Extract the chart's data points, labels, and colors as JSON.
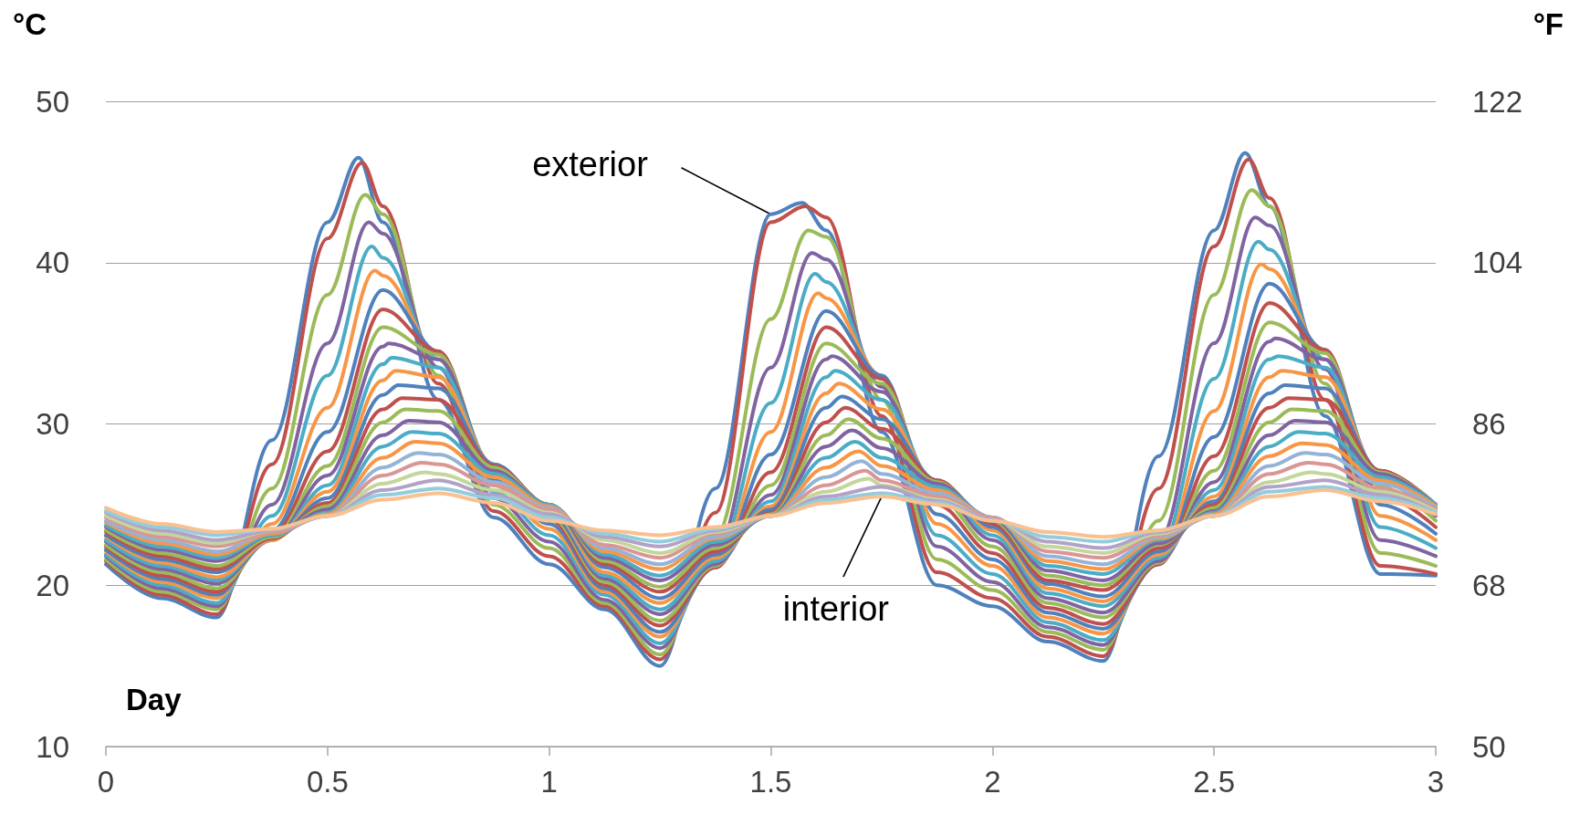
{
  "chart_data": {
    "type": "line",
    "xlabel": "Day",
    "ylabel": "°C",
    "y2label": "°F",
    "xlim": [
      0,
      3
    ],
    "xticks": [
      0,
      0.5,
      1,
      1.5,
      2,
      2.5,
      3
    ],
    "ylim": [
      10,
      50
    ],
    "yticks": [
      10,
      20,
      30,
      40,
      50
    ],
    "y2lim": [
      50,
      122
    ],
    "y2ticks": [
      50,
      68,
      86,
      104,
      122
    ],
    "grid": "y",
    "marker": "none",
    "line_style": "solid",
    "annotations": [
      {
        "text": "exterior",
        "x": 1.5,
        "y": 43.0
      },
      {
        "text": "interior",
        "x": 1.75,
        "y": 25.5
      }
    ],
    "series": [
      {
        "color": "#4f81bd",
        "x": [
          0,
          0.125,
          0.25,
          0.375,
          0.5,
          0.57,
          0.625,
          0.75,
          0.875,
          1,
          1.125,
          1.25,
          1.375,
          1.5,
          1.57,
          1.625,
          1.75,
          1.875,
          2,
          2.125,
          2.25,
          2.375,
          2.5,
          2.57,
          2.625,
          2.75,
          2.875,
          3
        ],
        "values": [
          21.3,
          19.2,
          18.0,
          29,
          42.5,
          46.5,
          42.5,
          31.5,
          24.2,
          21.3,
          18.5,
          15.0,
          26,
          43.0,
          43.7,
          42.0,
          29.5,
          20,
          18.7,
          16.5,
          15.3,
          28,
          42,
          46.8,
          43.5,
          30.5,
          20.7,
          20.6
        ]
      },
      {
        "color": "#c0504d",
        "x": [
          0,
          0.125,
          0.25,
          0.375,
          0.5,
          0.578,
          0.625,
          0.75,
          0.875,
          1,
          1.125,
          1.25,
          1.375,
          1.5,
          1.578,
          1.625,
          1.75,
          1.875,
          2,
          2.125,
          2.25,
          2.375,
          2.5,
          2.578,
          2.625,
          2.75,
          2.875,
          3
        ],
        "values": [
          21.5,
          19.4,
          18.2,
          27.5,
          41.5,
          46.2,
          43.5,
          32.5,
          24.6,
          21.8,
          18.7,
          15.4,
          24.5,
          42.5,
          43.5,
          42.8,
          30.5,
          20.8,
          19.2,
          16.8,
          15.6,
          26,
          41,
          46.4,
          44.0,
          31.5,
          21.2,
          20.7
        ]
      },
      {
        "color": "#9bbb59",
        "x": [
          0,
          0.125,
          0.25,
          0.375,
          0.5,
          0.585,
          0.625,
          0.75,
          0.875,
          1,
          1.125,
          1.25,
          1.375,
          1.5,
          1.585,
          1.625,
          1.75,
          1.875,
          2,
          2.125,
          2.25,
          2.375,
          2.5,
          2.585,
          2.625,
          2.75,
          2.875,
          3
        ],
        "values": [
          21.6,
          19.6,
          18.5,
          26,
          38,
          44.2,
          43,
          33,
          25.0,
          22.3,
          18.9,
          15.7,
          23,
          36.5,
          42,
          41.6,
          31.5,
          21.6,
          19.7,
          17.1,
          16.0,
          24,
          38,
          44.5,
          43.5,
          32.5,
          22.0,
          21.2
        ]
      },
      {
        "color": "#8064a2",
        "x": [
          0,
          0.125,
          0.25,
          0.375,
          0.5,
          0.593,
          0.625,
          0.75,
          0.875,
          1,
          1.125,
          1.25,
          1.375,
          1.5,
          1.593,
          1.625,
          1.75,
          1.875,
          2,
          2.125,
          2.25,
          2.375,
          2.5,
          2.593,
          2.625,
          2.75,
          2.875,
          3
        ],
        "values": [
          21.8,
          19.8,
          18.7,
          25,
          35,
          42.5,
          41.8,
          33.5,
          25.4,
          22.7,
          19.1,
          16.1,
          22,
          33.5,
          40.6,
          40.2,
          32.3,
          22.4,
          20.2,
          17.4,
          16.3,
          22.7,
          35,
          42.8,
          42.3,
          33.4,
          22.8,
          21.8
        ]
      },
      {
        "color": "#4bacc6",
        "x": [
          0,
          0.125,
          0.25,
          0.375,
          0.5,
          0.6,
          0.625,
          0.75,
          0.875,
          1,
          1.125,
          1.25,
          1.375,
          1.5,
          1.6,
          1.625,
          1.75,
          1.875,
          2,
          2.125,
          2.25,
          2.375,
          2.5,
          2.6,
          2.625,
          2.75,
          2.875,
          3
        ],
        "values": [
          21.9,
          20.0,
          18.9,
          24.3,
          33,
          41,
          40.3,
          34,
          25.8,
          23.1,
          19.4,
          16.4,
          21.5,
          31.3,
          39.3,
          38.8,
          32.8,
          23.1,
          20.7,
          17.7,
          16.6,
          22,
          32.8,
          41.3,
          40.8,
          34,
          23.6,
          22.3
        ]
      },
      {
        "color": "#f79646",
        "x": [
          0,
          0.125,
          0.25,
          0.375,
          0.5,
          0.607,
          0.625,
          0.75,
          0.875,
          1,
          1.125,
          1.25,
          1.375,
          1.5,
          1.607,
          1.625,
          1.75,
          1.875,
          2,
          2.125,
          2.25,
          2.375,
          2.5,
          2.607,
          2.625,
          2.75,
          2.875,
          3
        ],
        "values": [
          22.1,
          20.2,
          19.2,
          23.8,
          31,
          39.5,
          39.2,
          34.3,
          26.2,
          23.5,
          19.6,
          16.8,
          21.2,
          29.5,
          38.1,
          37.8,
          33.0,
          23.8,
          21.2,
          18.0,
          17.0,
          21.5,
          30.8,
          39.9,
          39.6,
          34.4,
          24.3,
          22.8
        ]
      },
      {
        "color": "#4f81bd",
        "x": [
          0,
          0.125,
          0.25,
          0.375,
          0.5,
          0.625,
          0.75,
          0.875,
          1,
          1.125,
          1.25,
          1.375,
          1.5,
          1.625,
          1.75,
          1.875,
          2,
          2.125,
          2.25,
          2.375,
          2.5,
          2.625,
          2.75,
          2.875,
          3
        ],
        "values": [
          22.2,
          20.4,
          19.4,
          23.4,
          29.5,
          38.3,
          34.5,
          26.5,
          23.8,
          19.8,
          17.1,
          21.1,
          28.1,
          37.0,
          33.0,
          24.4,
          21.6,
          18.3,
          17.3,
          21.3,
          29.2,
          38.7,
          34.6,
          25.0,
          23.2
        ]
      },
      {
        "color": "#c0504d",
        "x": [
          0,
          0.125,
          0.25,
          0.375,
          0.5,
          0.625,
          0.75,
          0.875,
          1,
          1.125,
          1.25,
          1.375,
          1.5,
          1.625,
          1.75,
          1.875,
          2,
          2.125,
          2.25,
          2.375,
          2.5,
          2.625,
          2.75,
          2.875,
          3
        ],
        "values": [
          22.4,
          20.6,
          19.6,
          23.1,
          28.3,
          37.1,
          34.5,
          26.8,
          24.1,
          20.0,
          17.5,
          21.1,
          27,
          36.0,
          32.8,
          25.0,
          22.0,
          18.6,
          17.6,
          21.3,
          28,
          37.5,
          34.6,
          25.6,
          23.6
        ]
      },
      {
        "color": "#9bbb59",
        "x": [
          0,
          0.125,
          0.25,
          0.375,
          0.5,
          0.625,
          0.75,
          0.875,
          1,
          1.125,
          1.25,
          1.375,
          1.5,
          1.625,
          1.75,
          1.875,
          2,
          2.125,
          2.25,
          2.375,
          2.5,
          2.625,
          2.75,
          2.875,
          3
        ],
        "values": [
          22.5,
          20.8,
          19.8,
          22.9,
          27.4,
          36.0,
          34.3,
          27.1,
          24.3,
          20.2,
          17.8,
          21.2,
          26.2,
          35.0,
          32.5,
          25.5,
          22.4,
          18.9,
          18.0,
          21.4,
          27.1,
          36.3,
          34.4,
          26.1,
          24.0
        ]
      },
      {
        "color": "#8064a2",
        "x": [
          0,
          0.125,
          0.25,
          0.375,
          0.5,
          0.625,
          0.638,
          0.75,
          0.875,
          1,
          1.125,
          1.25,
          1.375,
          1.5,
          1.625,
          1.638,
          1.75,
          1.875,
          2,
          2.125,
          2.25,
          2.375,
          2.5,
          2.625,
          2.638,
          2.75,
          2.875,
          3
        ],
        "values": [
          22.7,
          21.0,
          20.1,
          22.8,
          26.8,
          34.8,
          35,
          34,
          27.3,
          24.5,
          20.4,
          18.2,
          21.3,
          25.6,
          34.0,
          34.2,
          32.0,
          25.9,
          22.8,
          19.2,
          18.3,
          21.5,
          26.4,
          35.1,
          35.3,
          34,
          26.5,
          24.3
        ]
      },
      {
        "color": "#4bacc6",
        "x": [
          0,
          0.125,
          0.25,
          0.375,
          0.5,
          0.625,
          0.645,
          0.75,
          0.875,
          1,
          1.125,
          1.25,
          1.375,
          1.5,
          1.625,
          1.645,
          1.75,
          1.875,
          2,
          2.125,
          2.25,
          2.375,
          2.5,
          2.625,
          2.645,
          2.75,
          2.875,
          3
        ],
        "values": [
          22.8,
          21.2,
          20.3,
          22.8,
          26.2,
          33.7,
          34.1,
          33.5,
          27.4,
          24.7,
          20.6,
          18.5,
          21.5,
          25.2,
          32.9,
          33.3,
          31.5,
          26.2,
          23.1,
          19.5,
          18.7,
          21.7,
          25.9,
          34.0,
          34.2,
          33.5,
          26.8,
          24.5
        ]
      },
      {
        "color": "#f79646",
        "x": [
          0,
          0.125,
          0.25,
          0.375,
          0.5,
          0.625,
          0.653,
          0.75,
          0.875,
          1,
          1.125,
          1.25,
          1.375,
          1.5,
          1.625,
          1.653,
          1.75,
          1.875,
          2,
          2.125,
          2.25,
          2.375,
          2.5,
          2.625,
          2.653,
          2.75,
          2.875,
          3
        ],
        "values": [
          23.0,
          21.4,
          20.5,
          22.8,
          25.8,
          32.7,
          33.3,
          32.9,
          27.5,
          24.8,
          20.8,
          18.9,
          21.7,
          24.9,
          31.9,
          32.5,
          30.9,
          26.4,
          23.4,
          19.8,
          19.0,
          21.9,
          25.5,
          32.9,
          33.3,
          32.9,
          27.0,
          24.7
        ]
      },
      {
        "color": "#4f81bd",
        "x": [
          0,
          0.125,
          0.25,
          0.375,
          0.5,
          0.625,
          0.66,
          0.75,
          0.875,
          1,
          1.125,
          1.25,
          1.375,
          1.5,
          1.625,
          1.66,
          1.75,
          1.875,
          2,
          2.125,
          2.25,
          2.375,
          2.5,
          2.625,
          2.66,
          2.75,
          2.875,
          3
        ],
        "values": [
          23.1,
          21.6,
          20.8,
          22.9,
          25.4,
          31.8,
          32.4,
          32.2,
          27.5,
          24.9,
          21.1,
          19.2,
          21.9,
          24.7,
          31.0,
          31.7,
          30.3,
          26.5,
          23.6,
          20.1,
          19.3,
          22.1,
          25.2,
          31.9,
          32.4,
          32.2,
          27.1,
          24.9
        ]
      },
      {
        "color": "#c0504d",
        "x": [
          0,
          0.125,
          0.25,
          0.375,
          0.5,
          0.625,
          0.668,
          0.75,
          0.875,
          1,
          1.125,
          1.25,
          1.375,
          1.5,
          1.625,
          1.668,
          1.75,
          1.875,
          2,
          2.125,
          2.25,
          2.375,
          2.5,
          2.625,
          2.668,
          2.75,
          2.875,
          3
        ],
        "values": [
          23.3,
          21.8,
          21.0,
          22.9,
          25.1,
          30.9,
          31.6,
          31.5,
          27.4,
          25.0,
          21.3,
          19.6,
          22.1,
          24.5,
          30.1,
          31.0,
          29.7,
          26.5,
          23.8,
          20.3,
          19.7,
          22.3,
          25,
          31.0,
          31.6,
          31.5,
          27.1,
          25.0
        ]
      },
      {
        "color": "#9bbb59",
        "x": [
          0,
          0.125,
          0.25,
          0.375,
          0.5,
          0.625,
          0.675,
          0.75,
          0.875,
          1,
          1.125,
          1.25,
          1.375,
          1.5,
          1.625,
          1.675,
          1.75,
          1.875,
          2,
          2.125,
          2.25,
          2.375,
          2.5,
          2.625,
          2.675,
          2.75,
          2.875,
          3
        ],
        "values": [
          23.4,
          22.0,
          21.2,
          23.0,
          24.9,
          30.1,
          30.9,
          30.8,
          27.3,
          25.0,
          21.5,
          19.9,
          22.3,
          24.4,
          29.3,
          30.3,
          29.1,
          26.4,
          24.0,
          20.6,
          20.0,
          22.5,
          24.8,
          30.1,
          30.9,
          30.8,
          27.0,
          25.0
        ]
      },
      {
        "color": "#8064a2",
        "x": [
          0,
          0.125,
          0.25,
          0.375,
          0.5,
          0.625,
          0.683,
          0.75,
          0.875,
          1,
          1.125,
          1.25,
          1.375,
          1.5,
          1.625,
          1.683,
          1.75,
          1.875,
          2,
          2.125,
          2.25,
          2.375,
          2.5,
          2.625,
          2.683,
          2.75,
          2.875,
          3
        ],
        "values": [
          23.6,
          22.2,
          21.5,
          23.1,
          24.7,
          29.3,
          30.2,
          30.1,
          27.1,
          25.0,
          21.7,
          20.3,
          22.5,
          24.3,
          28.6,
          29.6,
          28.5,
          26.3,
          24.1,
          20.9,
          20.3,
          22.6,
          24.6,
          29.3,
          30.2,
          30.1,
          26.9,
          25.0
        ]
      },
      {
        "color": "#4bacc6",
        "x": [
          0,
          0.125,
          0.25,
          0.375,
          0.5,
          0.625,
          0.69,
          0.75,
          0.875,
          1,
          1.125,
          1.25,
          1.375,
          1.5,
          1.625,
          1.69,
          1.75,
          1.875,
          2,
          2.125,
          2.25,
          2.375,
          2.5,
          2.625,
          2.69,
          2.75,
          2.875,
          3
        ],
        "values": [
          23.7,
          22.4,
          21.7,
          23.1,
          24.5,
          28.6,
          29.5,
          29.4,
          26.9,
          25.0,
          21.9,
          20.6,
          22.7,
          24.3,
          27.9,
          28.9,
          27.9,
          26.1,
          24.2,
          21.2,
          20.7,
          22.8,
          24.5,
          28.6,
          29.5,
          29.4,
          26.7,
          25.0
        ]
      },
      {
        "color": "#f79646",
        "x": [
          0,
          0.125,
          0.25,
          0.375,
          0.5,
          0.625,
          0.698,
          0.75,
          0.875,
          1,
          1.125,
          1.25,
          1.375,
          1.5,
          1.625,
          1.698,
          1.75,
          1.875,
          2,
          2.125,
          2.25,
          2.375,
          2.5,
          2.625,
          2.698,
          2.75,
          2.875,
          3
        ],
        "values": [
          23.9,
          22.6,
          21.9,
          23.2,
          24.4,
          27.9,
          28.9,
          28.8,
          26.7,
          24.9,
          22.1,
          21.0,
          22.9,
          24.3,
          27.3,
          28.3,
          27.4,
          25.9,
          24.2,
          21.5,
          21.0,
          22.9,
          24.4,
          28.0,
          28.8,
          28.7,
          26.5,
          24.9
        ]
      },
      {
        "color": "#95b3d7",
        "x": [
          0,
          0.125,
          0.25,
          0.375,
          0.5,
          0.625,
          0.705,
          0.75,
          0.875,
          1,
          1.125,
          1.25,
          1.375,
          1.5,
          1.625,
          1.705,
          1.75,
          1.875,
          2,
          2.125,
          2.25,
          2.375,
          2.5,
          2.625,
          2.705,
          2.75,
          2.875,
          3
        ],
        "values": [
          24.0,
          22.8,
          22.1,
          23.3,
          24.3,
          27.3,
          28.2,
          28.1,
          26.4,
          24.8,
          22.3,
          21.3,
          23.0,
          24.3,
          26.7,
          27.7,
          26.9,
          25.7,
          24.2,
          21.8,
          21.3,
          23.0,
          24.3,
          27.4,
          28.2,
          28.1,
          26.3,
          24.8
        ]
      },
      {
        "color": "#d99694",
        "x": [
          0,
          0.125,
          0.25,
          0.375,
          0.5,
          0.625,
          0.713,
          0.75,
          0.875,
          1,
          1.125,
          1.25,
          1.375,
          1.5,
          1.625,
          1.713,
          1.75,
          1.875,
          2,
          2.125,
          2.25,
          2.375,
          2.5,
          2.625,
          2.713,
          2.75,
          2.875,
          3
        ],
        "values": [
          24.2,
          23.0,
          22.4,
          23.3,
          24.3,
          26.8,
          27.6,
          27.5,
          26.2,
          24.7,
          22.5,
          21.7,
          23.2,
          24.3,
          26.2,
          27.1,
          26.5,
          25.5,
          24.2,
          22.1,
          21.7,
          23.1,
          24.3,
          26.9,
          27.6,
          27.5,
          26.0,
          24.7
        ]
      },
      {
        "color": "#c3d69b",
        "x": [
          0,
          0.125,
          0.25,
          0.375,
          0.5,
          0.625,
          0.72,
          0.75,
          0.875,
          1,
          1.125,
          1.25,
          1.375,
          1.5,
          1.625,
          1.72,
          1.75,
          1.875,
          2,
          2.125,
          2.25,
          2.375,
          2.5,
          2.625,
          2.72,
          2.75,
          2.875,
          3
        ],
        "values": [
          24.3,
          23.2,
          22.6,
          23.4,
          24.3,
          26.3,
          27.0,
          26.9,
          25.9,
          24.5,
          22.8,
          22.0,
          23.3,
          24.3,
          25.8,
          26.6,
          26.2,
          25.3,
          24.1,
          22.4,
          22.0,
          23.2,
          24.3,
          26.4,
          27.0,
          26.9,
          25.8,
          24.6
        ]
      },
      {
        "color": "#b3a2c7",
        "x": [
          0,
          0.125,
          0.25,
          0.375,
          0.5,
          0.625,
          0.75,
          0.875,
          1,
          1.125,
          1.25,
          1.375,
          1.5,
          1.625,
          1.75,
          1.875,
          2,
          2.125,
          2.25,
          2.375,
          2.5,
          2.625,
          2.75,
          2.875,
          3
        ],
        "values": [
          24.5,
          23.4,
          22.8,
          23.4,
          24.3,
          25.9,
          26.5,
          25.6,
          24.4,
          23.0,
          22.4,
          23.4,
          24.3,
          25.5,
          26.1,
          25.2,
          24.1,
          22.7,
          22.3,
          23.3,
          24.3,
          26.1,
          26.5,
          25.6,
          24.5
        ]
      },
      {
        "color": "#93cddd",
        "x": [
          0,
          0.125,
          0.25,
          0.375,
          0.5,
          0.625,
          0.75,
          0.875,
          1,
          1.125,
          1.25,
          1.375,
          1.5,
          1.625,
          1.75,
          1.875,
          2,
          2.125,
          2.25,
          2.375,
          2.5,
          2.625,
          2.75,
          2.875,
          3
        ],
        "values": [
          24.6,
          23.6,
          23.1,
          23.5,
          24.3,
          25.6,
          26.0,
          25.4,
          24.2,
          23.2,
          22.7,
          23.5,
          24.3,
          25.3,
          25.7,
          25.1,
          24.0,
          23.0,
          22.7,
          23.4,
          24.3,
          25.8,
          26.1,
          25.4,
          24.5
        ]
      },
      {
        "color": "#fac090",
        "x": [
          0,
          0.125,
          0.25,
          0.375,
          0.5,
          0.625,
          0.75,
          0.875,
          1,
          1.125,
          1.25,
          1.375,
          1.5,
          1.625,
          1.75,
          1.875,
          2,
          2.125,
          2.25,
          2.375,
          2.5,
          2.625,
          2.75,
          2.875,
          3
        ],
        "values": [
          24.8,
          23.8,
          23.3,
          23.5,
          24.3,
          25.3,
          25.7,
          25.1,
          24.0,
          23.4,
          23.1,
          23.6,
          24.3,
          25.1,
          25.5,
          25.0,
          24.0,
          23.3,
          23.0,
          23.4,
          24.3,
          25.5,
          25.9,
          25.2,
          24.4
        ]
      }
    ]
  }
}
